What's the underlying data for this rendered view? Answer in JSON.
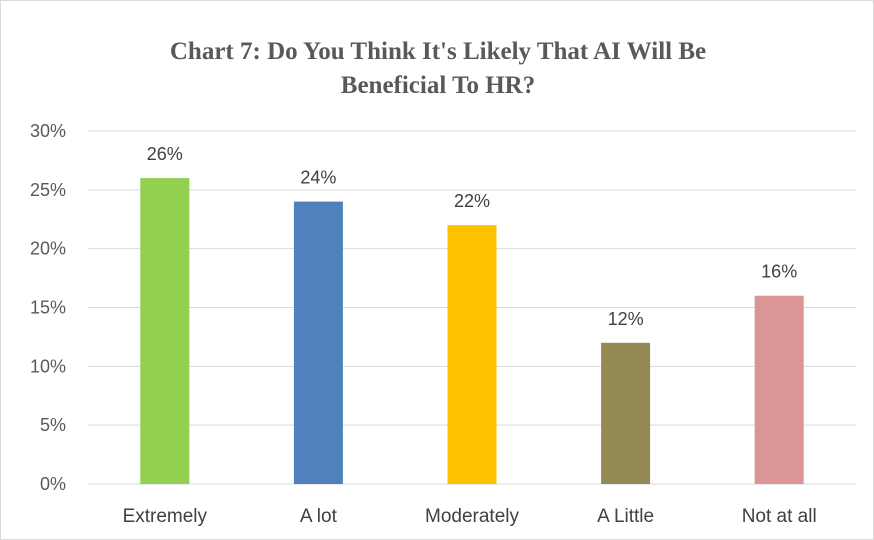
{
  "chart_data": {
    "type": "bar",
    "title_line1": "Chart 7: Do You Think It's Likely That AI Will Be",
    "title_line2": "Beneficial To HR?",
    "categories": [
      "Extremely",
      "A lot",
      "Moderately",
      "A Little",
      "Not at all"
    ],
    "values": [
      26,
      24,
      22,
      12,
      16
    ],
    "value_labels": [
      "26%",
      "24%",
      "22%",
      "12%",
      "16%"
    ],
    "colors": [
      "#92d050",
      "#4f81bd",
      "#ffc000",
      "#948a54",
      "#d99694"
    ],
    "yticks": [
      0,
      5,
      10,
      15,
      20,
      25,
      30
    ],
    "ytick_labels": [
      "0%",
      "5%",
      "10%",
      "15%",
      "20%",
      "25%",
      "30%"
    ],
    "ylim": [
      0,
      30
    ],
    "grid": true,
    "gridline_color": "#d9d9d9",
    "legend": "none"
  }
}
